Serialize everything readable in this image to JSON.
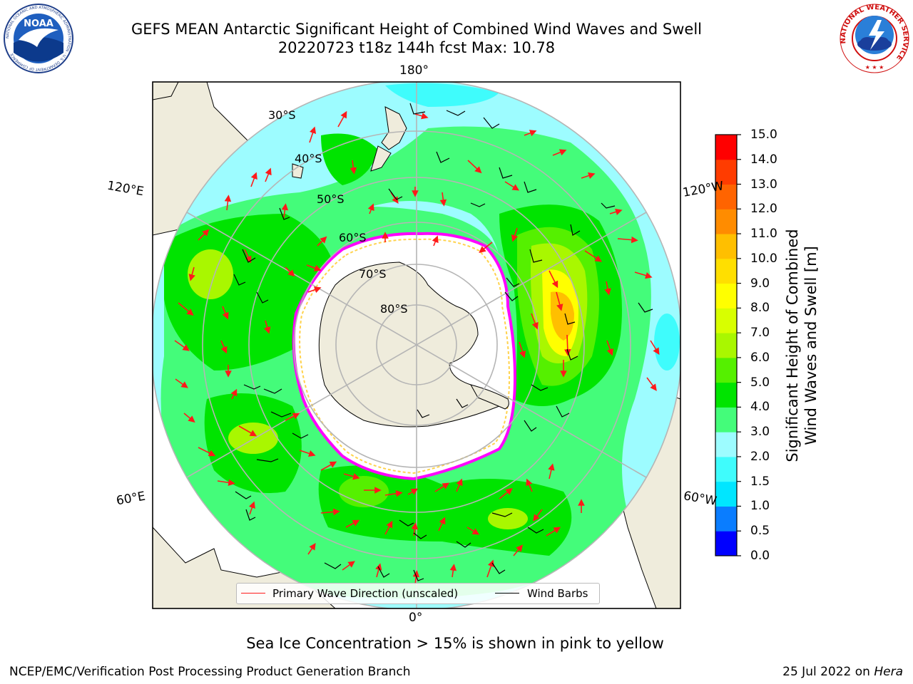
{
  "header": {
    "title_line1": "GEFS MEAN Antarctic Significant Height of Combined Wind Waves and Swell",
    "title_line2": "20220723 t18z 144h fcst   Max: 10.78"
  },
  "logos": {
    "noaa": {
      "text": "NOAA",
      "ring_text": "NATIONAL OCEANIC AND ATMOSPHERIC ADMINISTRATION · U.S. DEPARTMENT OF COMMERCE",
      "icon": "noaa-bird-icon"
    },
    "nws": {
      "ring_text": "NATIONAL WEATHER SERVICE",
      "icon": "nws-cloud-lightning-icon"
    }
  },
  "map": {
    "projection": "south-polar-stereographic",
    "longitude_labels": {
      "top": "180°",
      "bottom": "0°",
      "left_upper": "120°E",
      "left_lower": "60°E",
      "right_upper": "120°W",
      "right_lower": "60°W"
    },
    "latitude_labels": [
      "30°S",
      "40°S",
      "50°S",
      "60°S",
      "70°S",
      "80°S"
    ],
    "colors": {
      "land": "#efecdc",
      "sea_ice_edge": [
        "#ff00ff",
        "#ffd34d"
      ],
      "wave_arrow": "#ff1a1a",
      "wind_barb": "#000000",
      "graticule": "#b5b5b5"
    }
  },
  "colorbar": {
    "label": "Significant Height of Combined Wind Waves and Swell [m]",
    "ticks": [
      "0.0",
      "0.5",
      "1.0",
      "1.5",
      "2.0",
      "3.0",
      "4.0",
      "5.0",
      "6.0",
      "7.0",
      "8.0",
      "9.0",
      "10.0",
      "11.0",
      "12.0",
      "13.0",
      "14.0",
      "15.0"
    ],
    "colors": [
      "#0000ff",
      "#0a7dff",
      "#00e6ff",
      "#3ffcfc",
      "#9dfcff",
      "#44fc7a",
      "#00e400",
      "#55f000",
      "#a9f700",
      "#d8ff00",
      "#ffff00",
      "#ffdf00",
      "#ffbf00",
      "#ff8c00",
      "#ff6400",
      "#ff3c00",
      "#ff0000"
    ]
  },
  "legend": {
    "wave_label": "Primary Wave Direction (unscaled)",
    "wind_label": "Wind Barbs"
  },
  "footer": {
    "note": "Sea Ice Concentration > 15% is shown in pink to yellow",
    "credit": "NCEP/EMC/Verification Post Processing Product Generation Branch",
    "date_text": "25 Jul 2022 on ",
    "machine": "Hera"
  }
}
